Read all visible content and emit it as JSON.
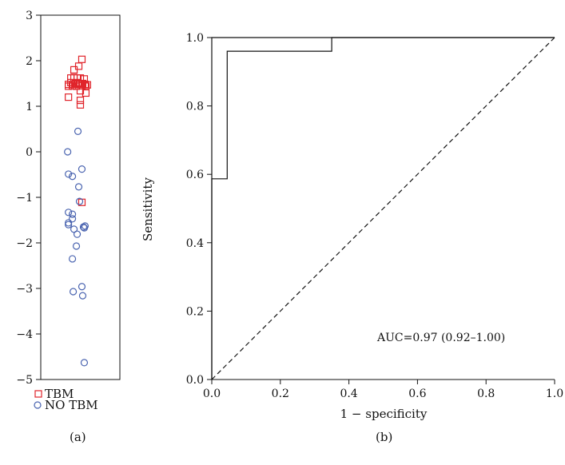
{
  "chart_data": [
    {
      "type": "scatter",
      "panel_label": "(a)",
      "ylim": [
        -5,
        3
      ],
      "y_ticks": [
        3,
        2,
        1,
        0,
        -1,
        -2,
        -3,
        -4,
        -5
      ],
      "y_tick_labels": [
        "3",
        "2",
        "1",
        "0",
        "−1",
        "−2",
        "−3",
        "−4",
        "−5"
      ],
      "grid": false,
      "legend_position": "bottom",
      "series": [
        {
          "name": "TBM",
          "marker": "square",
          "color": "#e0242b",
          "points": [
            [
              0.52,
              2.03
            ],
            [
              0.48,
              1.88
            ],
            [
              0.42,
              1.8
            ],
            [
              0.38,
              1.62
            ],
            [
              0.42,
              1.63
            ],
            [
              0.46,
              1.62
            ],
            [
              0.5,
              1.62
            ],
            [
              0.55,
              1.6
            ],
            [
              0.35,
              1.48
            ],
            [
              0.38,
              1.52
            ],
            [
              0.41,
              1.48
            ],
            [
              0.44,
              1.5
            ],
            [
              0.47,
              1.52
            ],
            [
              0.5,
              1.48
            ],
            [
              0.53,
              1.5
            ],
            [
              0.56,
              1.48
            ],
            [
              0.59,
              1.47
            ],
            [
              0.35,
              1.44
            ],
            [
              0.4,
              1.45
            ],
            [
              0.45,
              1.44
            ],
            [
              0.52,
              1.45
            ],
            [
              0.57,
              1.44
            ],
            [
              0.5,
              1.34
            ],
            [
              0.57,
              1.29
            ],
            [
              0.35,
              1.2
            ],
            [
              0.5,
              1.13
            ],
            [
              0.5,
              1.03
            ],
            [
              0.52,
              -1.11
            ]
          ]
        },
        {
          "name": "NO TBM",
          "marker": "circle",
          "color": "#4a64b0",
          "points": [
            [
              0.47,
              0.45
            ],
            [
              0.34,
              0.0
            ],
            [
              0.52,
              -0.38
            ],
            [
              0.35,
              -0.49
            ],
            [
              0.4,
              -0.54
            ],
            [
              0.48,
              -0.77
            ],
            [
              0.49,
              -1.09
            ],
            [
              0.35,
              -1.33
            ],
            [
              0.4,
              -1.37
            ],
            [
              0.4,
              -1.47
            ],
            [
              0.35,
              -1.56
            ],
            [
              0.35,
              -1.6
            ],
            [
              0.42,
              -1.7
            ],
            [
              0.54,
              -1.65
            ],
            [
              0.55,
              -1.67
            ],
            [
              0.56,
              -1.63
            ],
            [
              0.46,
              -1.81
            ],
            [
              0.45,
              -2.07
            ],
            [
              0.4,
              -2.35
            ],
            [
              0.52,
              -2.96
            ],
            [
              0.41,
              -3.07
            ],
            [
              0.53,
              -3.16
            ],
            [
              0.55,
              -4.63
            ]
          ]
        }
      ]
    },
    {
      "type": "line",
      "panel_label": "(b)",
      "xlabel": "1 − specificity",
      "ylabel": "Sensitivity",
      "xlim": [
        0,
        1
      ],
      "ylim": [
        0,
        1
      ],
      "x_ticks": [
        0,
        0.2,
        0.4,
        0.6,
        0.8,
        1.0
      ],
      "x_tick_labels": [
        "0.0",
        "0.2",
        "0.4",
        "0.6",
        "0.8",
        "1.0"
      ],
      "y_ticks": [
        0,
        0.2,
        0.4,
        0.6,
        0.8,
        1.0
      ],
      "y_tick_labels": [
        "0.0",
        "0.2",
        "0.4",
        "0.6",
        "0.8",
        "1.0"
      ],
      "grid": false,
      "annotation": "AUC=0.97 (0.92–1.00)",
      "series": [
        {
          "style": "solid",
          "points": [
            [
              0,
              0
            ],
            [
              0,
              0.587
            ],
            [
              0.045,
              0.587
            ],
            [
              0.045,
              0.96
            ],
            [
              0.35,
              0.96
            ],
            [
              0.35,
              1.0
            ],
            [
              1.0,
              1.0
            ]
          ]
        },
        {
          "style": "solid",
          "points": [
            [
              0,
              0
            ],
            [
              0,
              1.0
            ],
            [
              0.045,
              1.0
            ],
            [
              0.35,
              1.0
            ],
            [
              1.0,
              1.0
            ]
          ]
        },
        {
          "style": "dashed",
          "points": [
            [
              0,
              0
            ],
            [
              1,
              1
            ]
          ]
        }
      ]
    }
  ]
}
